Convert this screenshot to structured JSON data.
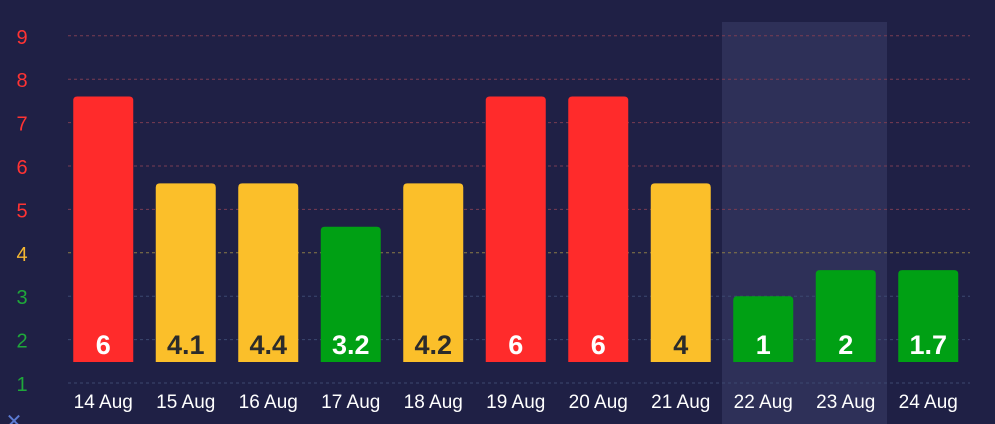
{
  "chart_data": {
    "type": "bar",
    "categories": [
      "14 Aug",
      "15 Aug",
      "16 Aug",
      "17 Aug",
      "18 Aug",
      "19 Aug",
      "20 Aug",
      "21 Aug",
      "22 Aug",
      "23 Aug",
      "24 Aug"
    ],
    "values": [
      6,
      4.1,
      4.4,
      3.2,
      4.2,
      6,
      6,
      4,
      1,
      2,
      1.7
    ],
    "value_labels": [
      "6",
      "4.1",
      "4.4",
      "3.2",
      "4.2",
      "6",
      "6",
      "4",
      "1",
      "2",
      "1.7"
    ],
    "bar_levels": [
      6,
      4,
      4,
      3,
      4,
      6,
      6,
      4,
      1.4,
      2,
      2
    ],
    "bar_colors": [
      "#ff2b2b",
      "#fbbf2a",
      "#fbbf2a",
      "#00a014",
      "#fbbf2a",
      "#ff2b2b",
      "#ff2b2b",
      "#fbbf2a",
      "#00a014",
      "#00a014",
      "#00a014"
    ],
    "label_colors": [
      "#ffffff",
      "#2b2b2b",
      "#2b2b2b",
      "#ffffff",
      "#2b2b2b",
      "#ffffff",
      "#ffffff",
      "#2b2b2b",
      "#ffffff",
      "#ffffff",
      "#ffffff"
    ],
    "y_ticks": [
      {
        "value": 1,
        "label": "1",
        "color": "#1fa83a"
      },
      {
        "value": 2,
        "label": "2",
        "color": "#1fa83a"
      },
      {
        "value": 3,
        "label": "3",
        "color": "#1fa83a"
      },
      {
        "value": 4,
        "label": "4",
        "color": "#f5b731"
      },
      {
        "value": 5,
        "label": "5",
        "color": "#ff3333"
      },
      {
        "value": 6,
        "label": "6",
        "color": "#ff3333"
      },
      {
        "value": 7,
        "label": "7",
        "color": "#ff3333"
      },
      {
        "value": 8,
        "label": "8",
        "color": "#ff3333"
      },
      {
        "value": 9,
        "label": "9",
        "color": "#ff3333"
      }
    ],
    "ylim": [
      1,
      9
    ],
    "grid": true,
    "highlighted_categories": [
      "22 Aug",
      "23 Aug"
    ],
    "title": "",
    "xlabel": "",
    "ylabel": ""
  },
  "colors": {
    "background": "#1f2045",
    "highlight_band": "#2e3058",
    "gridline_red": "#7a3c52",
    "gridline_yellow": "#8a7a46",
    "gridline_green": "#3c4870",
    "x_label": "#ffffff"
  }
}
